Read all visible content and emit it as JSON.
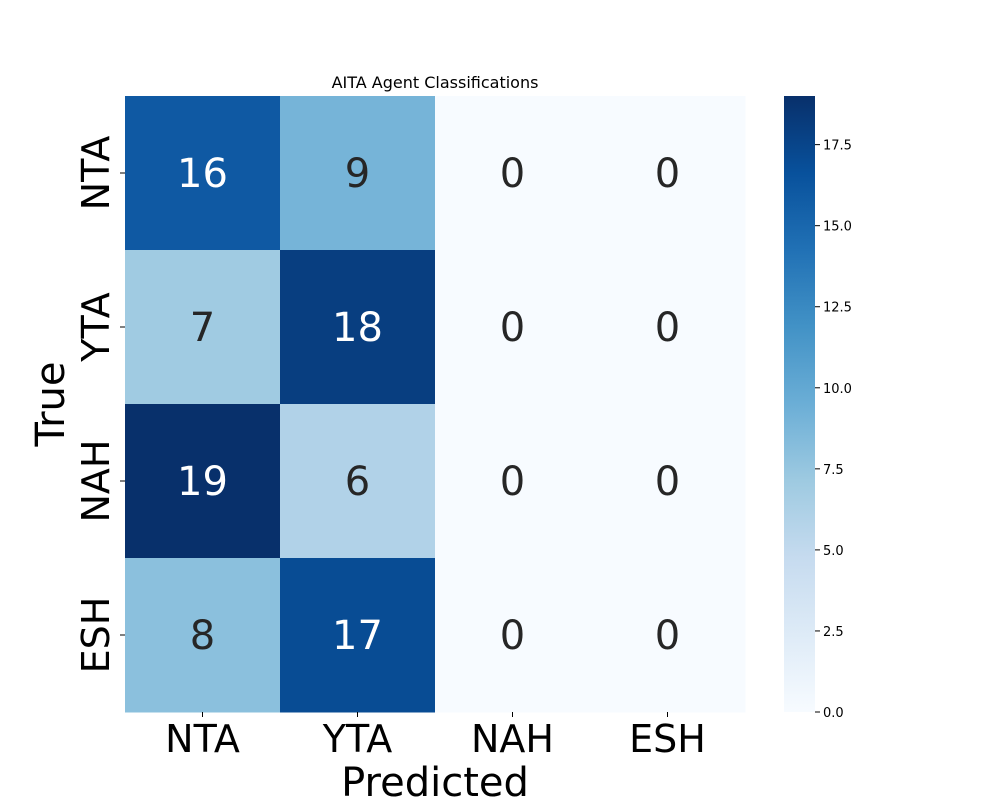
{
  "chart_data": {
    "type": "heatmap",
    "title": "AITA Agent Classifications",
    "xlabel": "Predicted",
    "ylabel": "True",
    "x_categories": [
      "NTA",
      "YTA",
      "NAH",
      "ESH"
    ],
    "y_categories": [
      "NTA",
      "YTA",
      "NAH",
      "ESH"
    ],
    "values": [
      [
        16,
        9,
        0,
        0
      ],
      [
        7,
        18,
        0,
        0
      ],
      [
        19,
        6,
        0,
        0
      ],
      [
        8,
        17,
        0,
        0
      ]
    ],
    "colorbar": {
      "min": 0,
      "max": 19,
      "ticks": [
        "0.0",
        "2.5",
        "5.0",
        "7.5",
        "10.0",
        "12.5",
        "15.0",
        "17.5"
      ],
      "tick_values": [
        0,
        2.5,
        5,
        7.5,
        10,
        12.5,
        15,
        17.5
      ]
    },
    "colormap": "Blues",
    "colors": {
      "low": "#f7fbff",
      "high": "#08306b",
      "text_dark": "#262626",
      "text_light": "#ffffff"
    }
  }
}
